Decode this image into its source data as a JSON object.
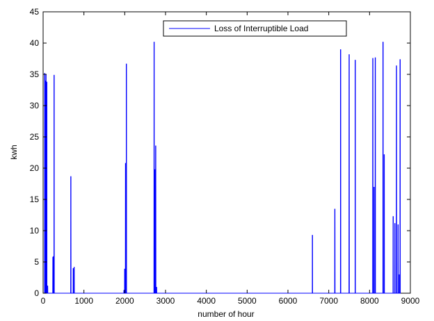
{
  "chart_data": {
    "type": "line",
    "title": "",
    "xlabel": "number of hour",
    "ylabel": "kwh",
    "xlim": [
      0,
      9000
    ],
    "ylim": [
      0,
      45
    ],
    "xticks": [
      0,
      1000,
      2000,
      3000,
      4000,
      5000,
      6000,
      7000,
      8000,
      9000
    ],
    "yticks": [
      0,
      5,
      10,
      15,
      20,
      25,
      30,
      35,
      40,
      45
    ],
    "grid": false,
    "legend_position": "top-right",
    "line_color": "#0000ff",
    "series": [
      {
        "name": "Loss of Interruptible Load",
        "color": "#0000ff",
        "spikes": [
          [
            40,
            35.2
          ],
          [
            60,
            34.0
          ],
          [
            70,
            35.0
          ],
          [
            90,
            33.8
          ],
          [
            110,
            1.2
          ],
          [
            240,
            5.8
          ],
          [
            255,
            5.9
          ],
          [
            270,
            34.9
          ],
          [
            680,
            18.7
          ],
          [
            740,
            4.0
          ],
          [
            760,
            4.2
          ],
          [
            1980,
            0.5
          ],
          [
            2000,
            3.9
          ],
          [
            2020,
            20.8
          ],
          [
            2040,
            36.7
          ],
          [
            2720,
            40.2
          ],
          [
            2740,
            19.8
          ],
          [
            2760,
            23.6
          ],
          [
            2780,
            1.0
          ],
          [
            6600,
            9.3
          ],
          [
            7150,
            13.5
          ],
          [
            7290,
            39.0
          ],
          [
            7500,
            38.2
          ],
          [
            7650,
            37.3
          ],
          [
            8080,
            37.6
          ],
          [
            8110,
            17.0
          ],
          [
            8140,
            37.7
          ],
          [
            8330,
            40.2
          ],
          [
            8360,
            22.2
          ],
          [
            8580,
            12.3
          ],
          [
            8620,
            11.2
          ],
          [
            8660,
            36.4
          ],
          [
            8700,
            11.0
          ],
          [
            8730,
            3.0
          ],
          [
            8750,
            37.4
          ]
        ]
      }
    ]
  }
}
